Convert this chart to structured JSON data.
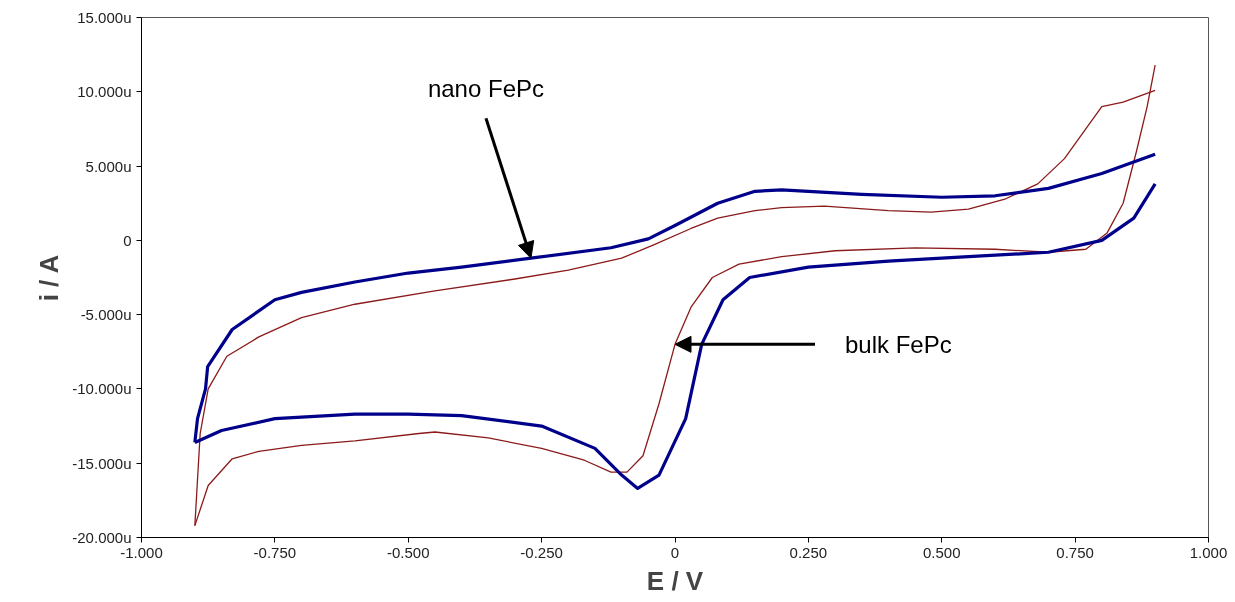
{
  "chart_data": {
    "type": "line",
    "xlabel": "E / V",
    "ylabel": "i / A",
    "xlim": [
      -1.0,
      1.0
    ],
    "ylim": [
      -20,
      15
    ],
    "xticks": [
      {
        "value": -1.0,
        "label": "-1.000"
      },
      {
        "value": -0.75,
        "label": "-0.750"
      },
      {
        "value": -0.5,
        "label": "-0.500"
      },
      {
        "value": -0.25,
        "label": "-0.250"
      },
      {
        "value": 0,
        "label": "0"
      },
      {
        "value": 0.25,
        "label": "0.250"
      },
      {
        "value": 0.5,
        "label": "0.500"
      },
      {
        "value": 0.75,
        "label": "0.750"
      },
      {
        "value": 1.0,
        "label": "1.000"
      }
    ],
    "yticks": [
      {
        "value": -20,
        "label": "-20.000u"
      },
      {
        "value": -15,
        "label": "-15.000u"
      },
      {
        "value": -10,
        "label": "-10.000u"
      },
      {
        "value": -5,
        "label": "-5.000u"
      },
      {
        "value": 0,
        "label": "0"
      },
      {
        "value": 5,
        "label": "5.000u"
      },
      {
        "value": 10,
        "label": "10.000u"
      },
      {
        "value": 15,
        "label": "15.000u"
      }
    ],
    "grid": false,
    "marker": "none",
    "line_style": "solid",
    "series": [
      {
        "color": "#8b1a1a",
        "x": [
          -0.9,
          -0.875,
          -0.83,
          -0.78,
          -0.7,
          -0.6,
          -0.48,
          -0.45,
          -0.35,
          -0.25,
          -0.17,
          -0.12,
          -0.09,
          -0.06,
          -0.03,
          0.0,
          0.03,
          0.07,
          0.12,
          0.2,
          0.3,
          0.45,
          0.6,
          0.7,
          0.77,
          0.81,
          0.84,
          0.865,
          0.885,
          0.9
        ],
        "values": [
          -19.2,
          -16.5,
          -14.7,
          -14.2,
          -13.8,
          -13.5,
          -13.0,
          -12.9,
          -13.3,
          -14.0,
          -14.8,
          -15.6,
          -15.6,
          -14.5,
          -11.0,
          -7.0,
          -4.5,
          -2.5,
          -1.6,
          -1.1,
          -0.7,
          -0.5,
          -0.6,
          -0.8,
          -0.6,
          0.5,
          2.5,
          6.0,
          9.0,
          11.8
        ]
      },
      {
        "color": "#8b1a1a",
        "x": [
          -0.9,
          -0.89,
          -0.875,
          -0.84,
          -0.78,
          -0.7,
          -0.6,
          -0.45,
          -0.3,
          -0.2,
          -0.1,
          -0.04,
          0.03,
          0.08,
          0.15,
          0.2,
          0.28,
          0.4,
          0.48,
          0.55,
          0.62,
          0.68,
          0.73,
          0.77,
          0.8,
          0.84,
          0.9
        ],
        "values": [
          -19.2,
          -13.0,
          -10.0,
          -7.8,
          -6.5,
          -5.2,
          -4.3,
          -3.4,
          -2.6,
          -2.0,
          -1.2,
          -0.3,
          0.8,
          1.5,
          2.0,
          2.2,
          2.3,
          2.0,
          1.9,
          2.1,
          2.8,
          3.8,
          5.5,
          7.5,
          9.0,
          9.3,
          10.1
        ]
      },
      {
        "color": "#00008b",
        "x": [
          -0.9,
          -0.85,
          -0.75,
          -0.6,
          -0.5,
          -0.4,
          -0.25,
          -0.15,
          -0.1,
          -0.07,
          -0.03,
          0.02,
          0.05,
          0.09,
          0.14,
          0.25,
          0.4,
          0.55,
          0.7,
          0.8,
          0.86,
          0.9
        ],
        "values": [
          -13.6,
          -12.8,
          -12.0,
          -11.7,
          -11.7,
          -11.8,
          -12.5,
          -14.0,
          -15.8,
          -16.7,
          -15.8,
          -12.0,
          -7.0,
          -4.0,
          -2.5,
          -1.8,
          -1.4,
          -1.1,
          -0.8,
          0.0,
          1.5,
          3.8
        ]
      },
      {
        "color": "#00008b",
        "x": [
          -0.9,
          -0.895,
          -0.88,
          -0.876,
          -0.83,
          -0.75,
          -0.7,
          -0.6,
          -0.5,
          -0.4,
          -0.27,
          -0.12,
          -0.05,
          0.0,
          0.08,
          0.15,
          0.2,
          0.35,
          0.5,
          0.6,
          0.7,
          0.8,
          0.9
        ],
        "values": [
          -13.6,
          -12.0,
          -10.0,
          -8.5,
          -6.0,
          -4.0,
          -3.5,
          -2.8,
          -2.2,
          -1.8,
          -1.2,
          -0.5,
          0.1,
          1.0,
          2.5,
          3.3,
          3.4,
          3.1,
          2.9,
          3.0,
          3.5,
          4.5,
          5.8
        ]
      }
    ],
    "annotations": [
      {
        "text": "nano FePc",
        "x": -0.27,
        "y": -1.2
      },
      {
        "text": "bulk FePc",
        "x": 0.0,
        "y": -7.0
      }
    ]
  }
}
